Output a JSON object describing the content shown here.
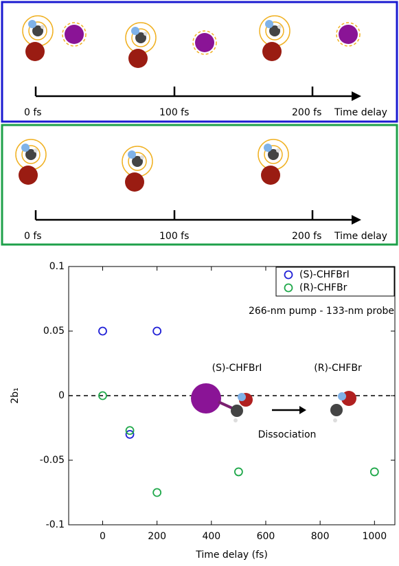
{
  "panels": [
    {
      "labels": [
        "0 fs",
        "100 fs",
        "200 fs",
        "Time delay"
      ]
    },
    {
      "labels": [
        "0 fs",
        "100 fs",
        "200 fs",
        "Time delay"
      ]
    }
  ],
  "chart_data": {
    "type": "scatter",
    "x_label": "Time delay (fs)",
    "y_label": "2b₁",
    "series": [
      {
        "name": "(S)-CHFBrI",
        "color": "#1f1fd6",
        "x": [
          0,
          100,
          200
        ],
        "values": [
          0.05,
          -0.03,
          0.05
        ]
      },
      {
        "name": "(R)-CHFBr",
        "color": "#1fa84a",
        "x": [
          0,
          100,
          200,
          500,
          1000
        ],
        "values": [
          0,
          -0.027,
          -0.075,
          -0.059,
          -0.059
        ]
      }
    ],
    "xlim": [
      -125,
      1075
    ],
    "ylim": [
      -0.1,
      0.1
    ],
    "xticks": [
      0,
      200,
      400,
      600,
      800,
      1000
    ],
    "yticks": [
      -0.1,
      -0.05,
      0,
      0.05,
      0.1
    ],
    "zero_line": true,
    "legend": "upper right",
    "annotations": [
      "266-nm pump - 133-nm probe",
      "(S)-CHFBrI",
      "(R)-CHFBr",
      "Dissociation"
    ]
  }
}
